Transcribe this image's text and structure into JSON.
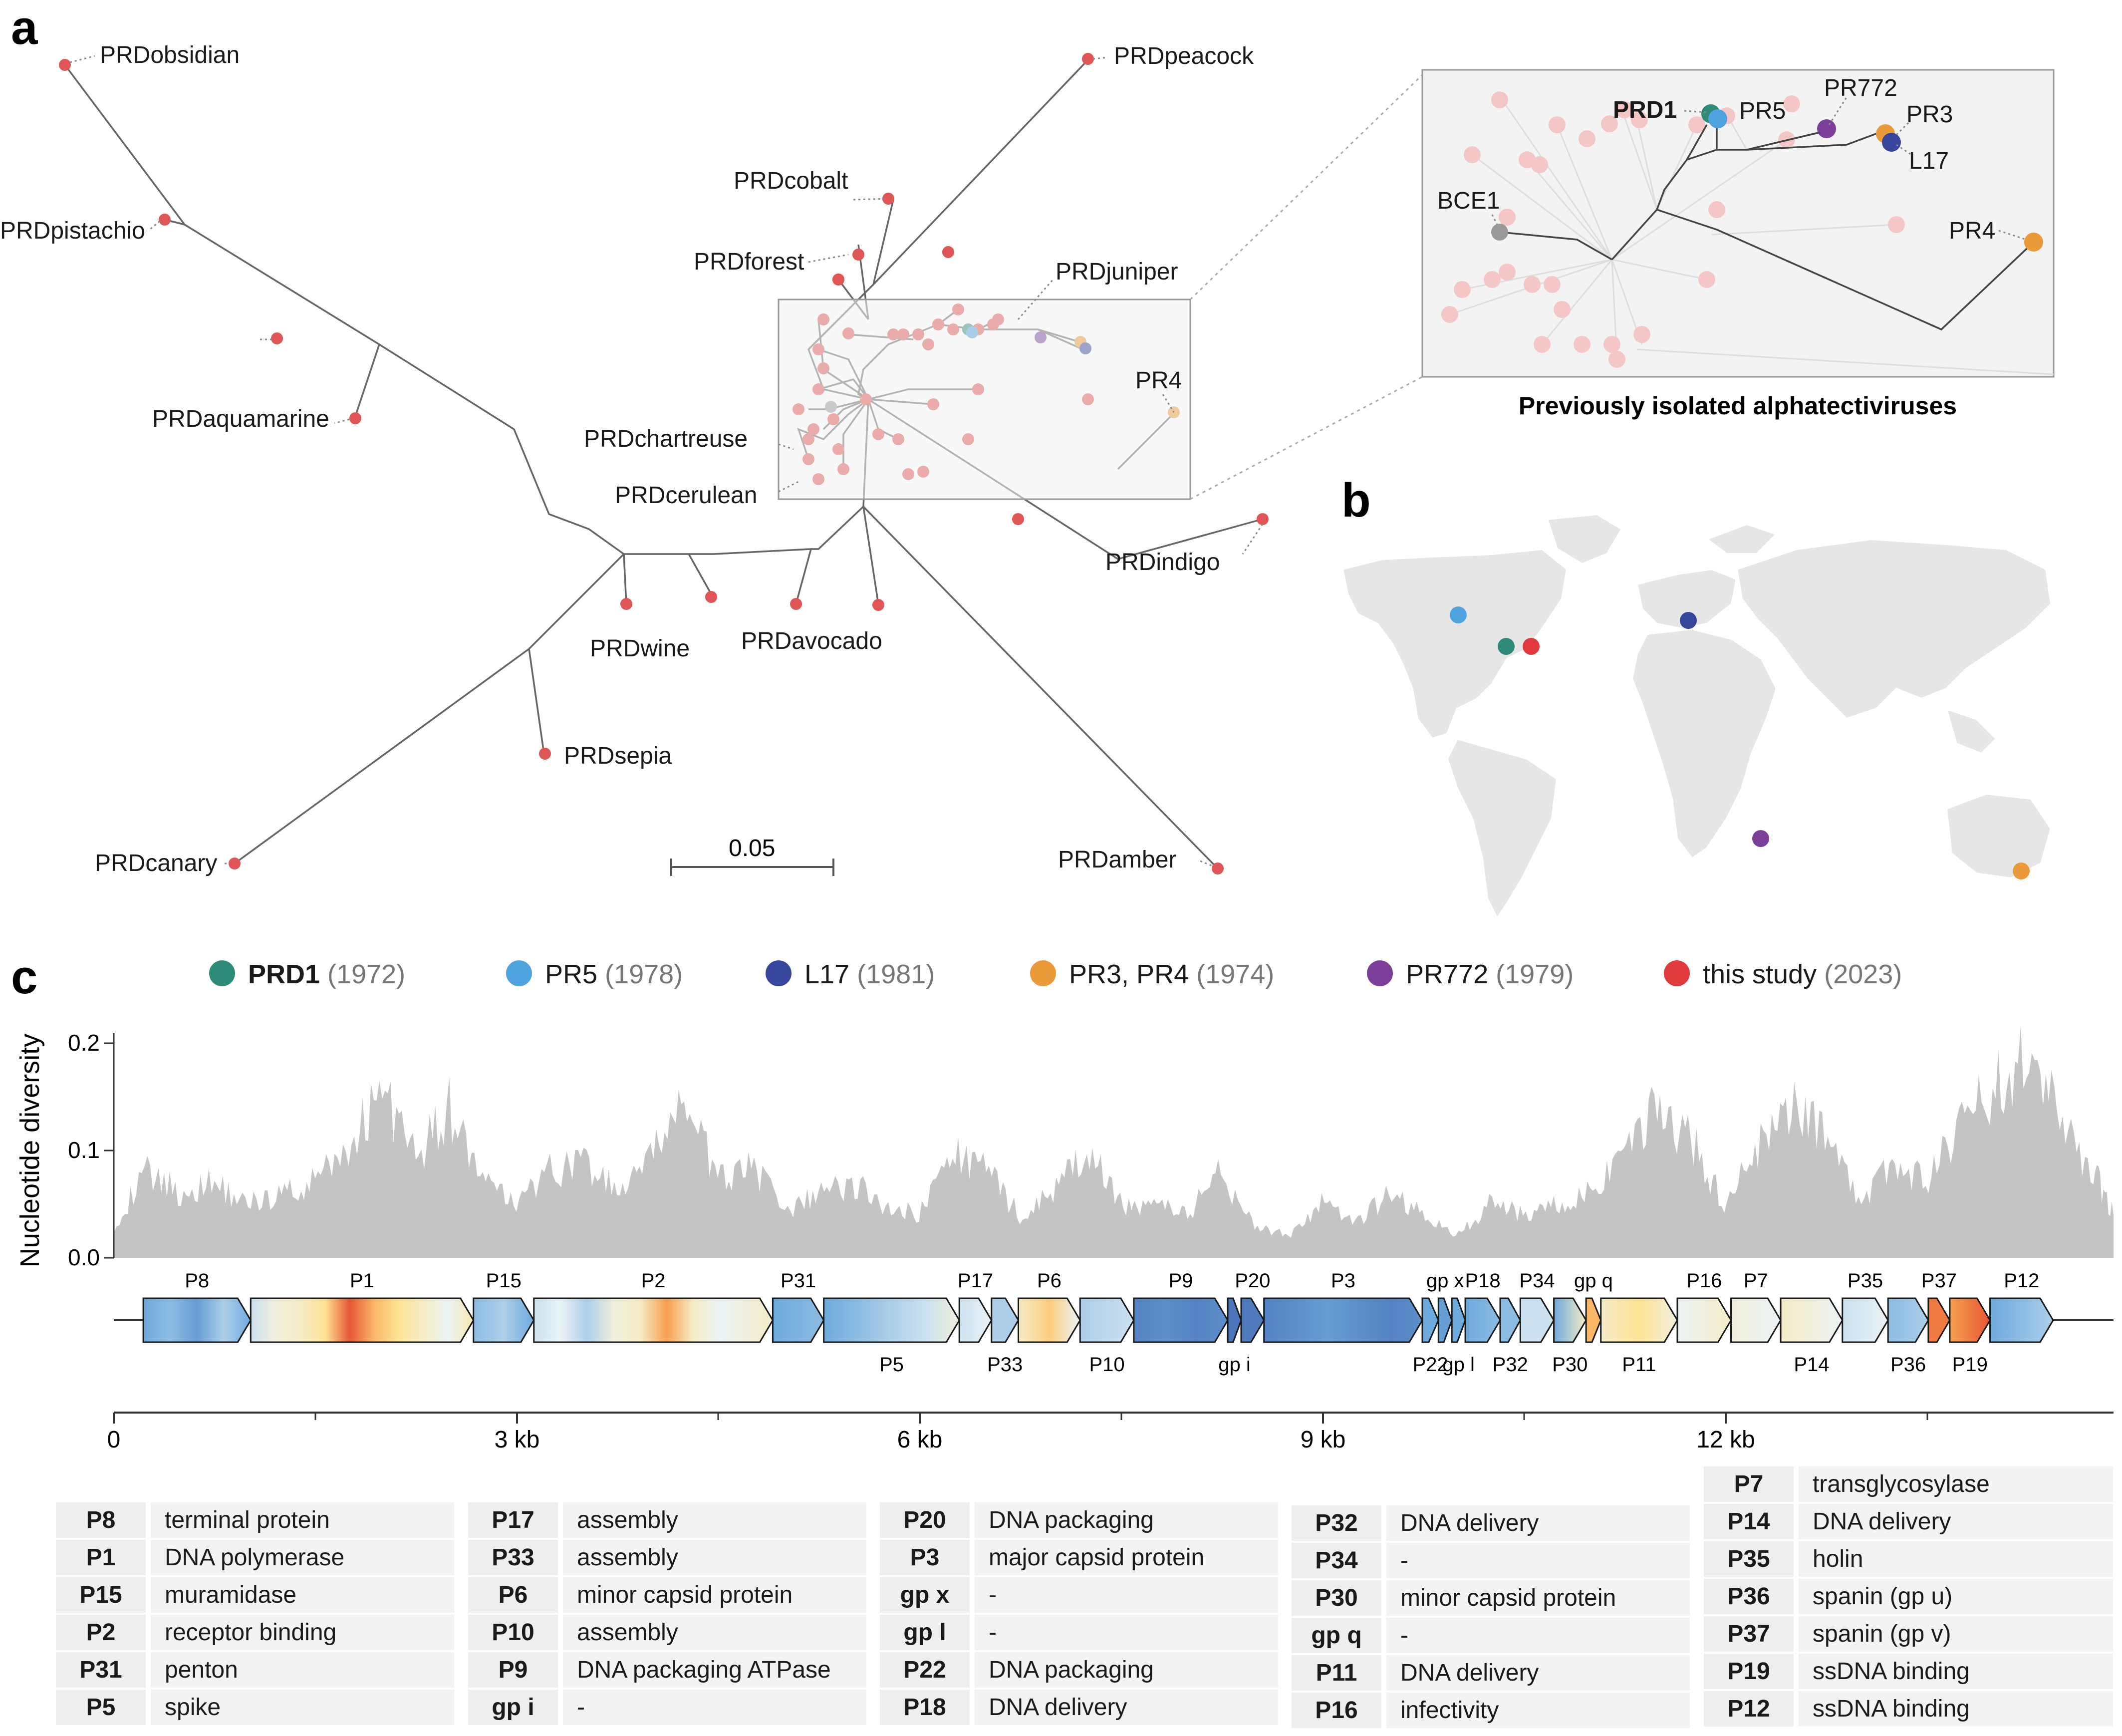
{
  "panels": {
    "a": "a",
    "b": "b",
    "c": "c"
  },
  "tree": {
    "leaf_labels": [
      "PRDobsidian",
      "PRDpistachio",
      "PRDaquamarine",
      "PRDcobalt",
      "PRDpeacock",
      "PRDforest",
      "PRDjuniper",
      "PR4",
      "PRDchartreuse",
      "PRDcerulean",
      "PRDindigo",
      "PRDwine",
      "PRDavocado",
      "PRDsepia",
      "PRDcanary",
      "PRDamber"
    ],
    "scale_bar": "0.05"
  },
  "inset": {
    "labels": [
      "PRD1",
      "PR5",
      "PR772",
      "PR3",
      "L17",
      "BCE1",
      "PR4"
    ],
    "caption": "Previously isolated alphatectiviruses"
  },
  "legend": [
    {
      "name": "PRD1",
      "year": "(1972)",
      "color": "#2e8b7a",
      "bold": true
    },
    {
      "name": "PR5",
      "year": "(1978)",
      "color": "#4fa3de",
      "bold": false
    },
    {
      "name": "L17",
      "year": "(1981)",
      "color": "#35469c",
      "bold": false
    },
    {
      "name": "PR3, PR4",
      "year": "(1974)",
      "color": "#eb9a3a",
      "bold": false
    },
    {
      "name": "PR772",
      "year": "(1979)",
      "color": "#7b3f9a",
      "bold": false
    },
    {
      "name": "this study",
      "year": "(2023)",
      "color": "#e03a3e",
      "bold": false
    }
  ],
  "colors": {
    "tree_leaf": "#e05555",
    "bce1": "#999999",
    "diversity_fill": "#c4c4c4",
    "panel_bg": "#f3f3f3"
  },
  "chart_data": {
    "type": "area",
    "ylabel": "Nucleotide diversity",
    "y_ticks": [
      "0.0",
      "0.1",
      "0.2"
    ],
    "ylim": [
      0,
      0.2
    ],
    "x_ticks": [
      "0",
      "3 kb",
      "6 kb",
      "9 kb",
      "12 kb"
    ],
    "xlim_kb": [
      0,
      14.9
    ],
    "x_kb": [
      0,
      0.25,
      0.5,
      0.75,
      1,
      1.25,
      1.5,
      1.75,
      2,
      2.25,
      2.5,
      2.75,
      3,
      3.25,
      3.5,
      3.75,
      4,
      4.25,
      4.5,
      4.75,
      5,
      5.25,
      5.5,
      5.75,
      6,
      6.25,
      6.5,
      6.75,
      7,
      7.25,
      7.5,
      7.75,
      8,
      8.25,
      8.5,
      8.75,
      9,
      9.25,
      9.5,
      9.75,
      10,
      10.25,
      10.5,
      10.75,
      11,
      11.25,
      11.5,
      11.75,
      12,
      12.25,
      12.5,
      12.75,
      13,
      13.25,
      13.5,
      13.75,
      14,
      14.25,
      14.5,
      14.75,
      14.9
    ],
    "values": [
      0.03,
      0.08,
      0.06,
      0.07,
      0.05,
      0.06,
      0.07,
      0.1,
      0.16,
      0.09,
      0.14,
      0.07,
      0.05,
      0.08,
      0.09,
      0.06,
      0.09,
      0.15,
      0.07,
      0.09,
      0.04,
      0.06,
      0.07,
      0.05,
      0.04,
      0.1,
      0.08,
      0.04,
      0.06,
      0.1,
      0.05,
      0.05,
      0.04,
      0.08,
      0.03,
      0.02,
      0.05,
      0.03,
      0.06,
      0.04,
      0.02,
      0.05,
      0.04,
      0.05,
      0.06,
      0.09,
      0.14,
      0.11,
      0.05,
      0.1,
      0.14,
      0.12,
      0.05,
      0.09,
      0.07,
      0.12,
      0.16,
      0.19,
      0.13,
      0.08,
      0.04
    ],
    "genes": [
      {
        "name": "P8",
        "start": 0.22,
        "end": 1.02,
        "pos": "top",
        "heat": [
          0.3,
          0.35,
          0.25,
          0.4,
          0.3
        ]
      },
      {
        "name": "P1",
        "start": 1.02,
        "end": 2.68,
        "pos": "top",
        "heat": [
          0.45,
          0.55,
          0.6,
          0.7,
          0.95,
          0.8,
          0.7,
          0.6,
          0.5,
          0.65
        ]
      },
      {
        "name": "P15",
        "start": 2.68,
        "end": 3.13,
        "pos": "top",
        "heat": [
          0.35,
          0.4,
          0.3
        ]
      },
      {
        "name": "P2",
        "start": 3.13,
        "end": 4.91,
        "pos": "top",
        "heat": [
          0.45,
          0.5,
          0.4,
          0.55,
          0.6,
          0.85,
          0.6,
          0.5,
          0.55,
          0.6
        ]
      },
      {
        "name": "P31",
        "start": 4.91,
        "end": 5.29,
        "pos": "top",
        "heat": [
          0.3,
          0.35
        ]
      },
      {
        "name": "P5",
        "start": 5.29,
        "end": 6.3,
        "pos": "bottom",
        "heat": [
          0.3,
          0.35,
          0.4,
          0.45,
          0.55
        ]
      },
      {
        "name": "P17",
        "start": 6.3,
        "end": 6.54,
        "pos": "top",
        "heat": [
          0.45,
          0.5
        ]
      },
      {
        "name": "P33",
        "start": 6.54,
        "end": 6.74,
        "pos": "bottom",
        "heat": [
          0.4
        ]
      },
      {
        "name": "P6",
        "start": 6.74,
        "end": 7.2,
        "pos": "top",
        "heat": [
          0.6,
          0.75,
          0.5
        ]
      },
      {
        "name": "P10",
        "start": 7.2,
        "end": 7.6,
        "pos": "bottom",
        "heat": [
          0.4,
          0.45
        ]
      },
      {
        "name": "P9",
        "start": 7.6,
        "end": 8.3,
        "pos": "top",
        "heat": [
          0.15,
          0.2,
          0.15,
          0.2
        ]
      },
      {
        "name": "gp i",
        "start": 8.3,
        "end": 8.4,
        "pos": "bottom",
        "heat": [
          0.1
        ]
      },
      {
        "name": "P20",
        "start": 8.4,
        "end": 8.57,
        "pos": "top",
        "heat": [
          0.12
        ]
      },
      {
        "name": "P3",
        "start": 8.57,
        "end": 9.75,
        "pos": "top",
        "heat": [
          0.15,
          0.2,
          0.25,
          0.2,
          0.15,
          0.2
        ]
      },
      {
        "name": "P22",
        "start": 9.75,
        "end": 9.87,
        "pos": "bottom",
        "heat": [
          0.3
        ]
      },
      {
        "name": "gp x",
        "start": 9.87,
        "end": 9.97,
        "pos": "top",
        "heat": [
          0.25
        ]
      },
      {
        "name": "gp l",
        "start": 9.97,
        "end": 10.07,
        "pos": "bottom",
        "heat": [
          0.3
        ]
      },
      {
        "name": "P18",
        "start": 10.07,
        "end": 10.33,
        "pos": "top",
        "heat": [
          0.3,
          0.35
        ]
      },
      {
        "name": "P32",
        "start": 10.33,
        "end": 10.48,
        "pos": "bottom",
        "heat": [
          0.35
        ]
      },
      {
        "name": "P34",
        "start": 10.48,
        "end": 10.73,
        "pos": "top",
        "heat": [
          0.45
        ]
      },
      {
        "name": "P30",
        "start": 10.73,
        "end": 10.97,
        "pos": "bottom",
        "heat": [
          0.3,
          0.6
        ]
      },
      {
        "name": "gp q",
        "start": 10.97,
        "end": 11.08,
        "pos": "top",
        "heat": [
          0.8
        ]
      },
      {
        "name": "P11",
        "start": 11.08,
        "end": 11.65,
        "pos": "bottom",
        "heat": [
          0.6,
          0.7,
          0.55
        ]
      },
      {
        "name": "P16",
        "start": 11.65,
        "end": 12.05,
        "pos": "top",
        "heat": [
          0.5,
          0.6
        ]
      },
      {
        "name": "P7",
        "start": 12.05,
        "end": 12.42,
        "pos": "top",
        "heat": [
          0.55,
          0.5
        ]
      },
      {
        "name": "P14",
        "start": 12.42,
        "end": 12.88,
        "pos": "bottom",
        "heat": [
          0.6,
          0.55,
          0.5
        ]
      },
      {
        "name": "P35",
        "start": 12.88,
        "end": 13.22,
        "pos": "top",
        "heat": [
          0.45,
          0.5
        ]
      },
      {
        "name": "P36",
        "start": 13.22,
        "end": 13.52,
        "pos": "bottom",
        "heat": [
          0.35,
          0.4
        ]
      },
      {
        "name": "P37",
        "start": 13.52,
        "end": 13.68,
        "pos": "top",
        "heat": [
          0.9
        ]
      },
      {
        "name": "P19",
        "start": 13.68,
        "end": 13.98,
        "pos": "bottom",
        "heat": [
          0.85,
          0.95
        ]
      },
      {
        "name": "P12",
        "start": 13.98,
        "end": 14.45,
        "pos": "top",
        "heat": [
          0.3,
          0.35,
          0.4
        ]
      }
    ]
  },
  "protein_tables": [
    [
      [
        "P8",
        "terminal protein"
      ],
      [
        "P1",
        "DNA polymerase"
      ],
      [
        "P15",
        "muramidase"
      ],
      [
        "P2",
        "receptor binding"
      ],
      [
        "P31",
        "penton"
      ],
      [
        "P5",
        "spike"
      ]
    ],
    [
      [
        "P17",
        "assembly"
      ],
      [
        "P33",
        "assembly"
      ],
      [
        "P6",
        "minor capsid protein"
      ],
      [
        "P10",
        "assembly"
      ],
      [
        "P9",
        "DNA packaging ATPase"
      ],
      [
        "gp i",
        "-"
      ]
    ],
    [
      [
        "P20",
        "DNA packaging"
      ],
      [
        "P3",
        "major capsid protein"
      ],
      [
        "gp x",
        "-"
      ],
      [
        "gp l",
        "-"
      ],
      [
        "P22",
        "DNA packaging"
      ],
      [
        "P18",
        "DNA delivery"
      ]
    ],
    [
      [
        "P32",
        "DNA delivery"
      ],
      [
        "P34",
        "-"
      ],
      [
        "P30",
        "minor capsid protein"
      ],
      [
        "gp q",
        "-"
      ],
      [
        "P11",
        "DNA delivery"
      ],
      [
        "P16",
        "infectivity"
      ]
    ],
    [
      [
        "P7",
        "transglycosylase"
      ],
      [
        "P14",
        "DNA delivery"
      ],
      [
        "P35",
        "holin"
      ],
      [
        "P36",
        "spanin (gp u)"
      ],
      [
        "P37",
        "spanin (gp v)"
      ],
      [
        "P19",
        "ssDNA binding"
      ],
      [
        "P12",
        "ssDNA binding"
      ]
    ]
  ]
}
